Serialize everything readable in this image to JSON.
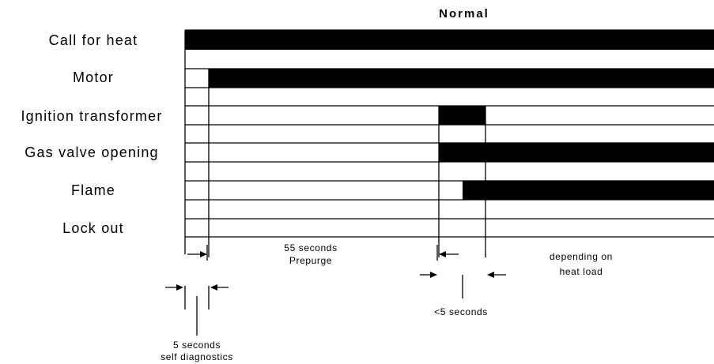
{
  "title": "Normal",
  "signals": [
    {
      "label": "Call for heat"
    },
    {
      "label": "Motor"
    },
    {
      "label": "Ignition transformer"
    },
    {
      "label": "Gas valve opening"
    },
    {
      "label": "Flame"
    },
    {
      "label": "Lock out"
    }
  ],
  "annotations": {
    "prepurge": {
      "line1": "55 seconds",
      "line2": "Prepurge"
    },
    "heat_load": {
      "line1": "depending on",
      "line2": "heat load"
    },
    "ignition": {
      "line1": "<5 seconds"
    },
    "diagnostics": {
      "line1": "5 seconds",
      "line2": "self diagnostics"
    }
  }
}
